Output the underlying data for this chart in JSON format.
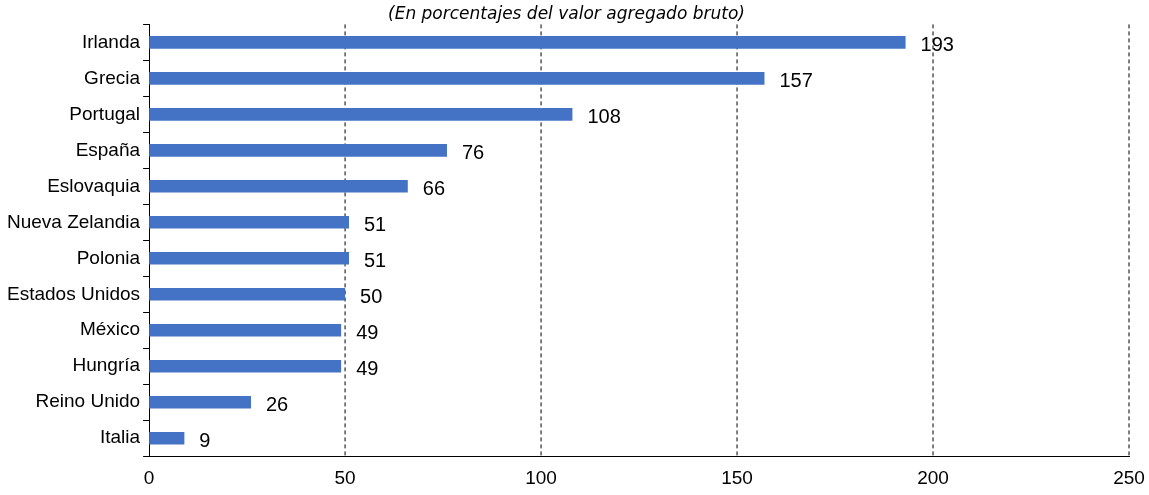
{
  "chart_data": {
    "type": "bar",
    "orientation": "horizontal",
    "subtitle": "(En porcentajes del valor agregado bruto)",
    "categories": [
      "Irlanda",
      "Grecia",
      "Portugal",
      "España",
      "Eslovaquia",
      "Nueva Zelandia",
      "Polonia",
      "Estados Unidos",
      "México",
      "Hungría",
      "Reino Unido",
      "Italia"
    ],
    "values": [
      193,
      157,
      108,
      76,
      66,
      51,
      51,
      50,
      49,
      49,
      26,
      9
    ],
    "color": "#4472c4",
    "xlim": [
      0,
      250
    ],
    "xticks": [
      0,
      50,
      100,
      150,
      200,
      250
    ],
    "grid": "x",
    "legend": false,
    "data_labels": true
  }
}
